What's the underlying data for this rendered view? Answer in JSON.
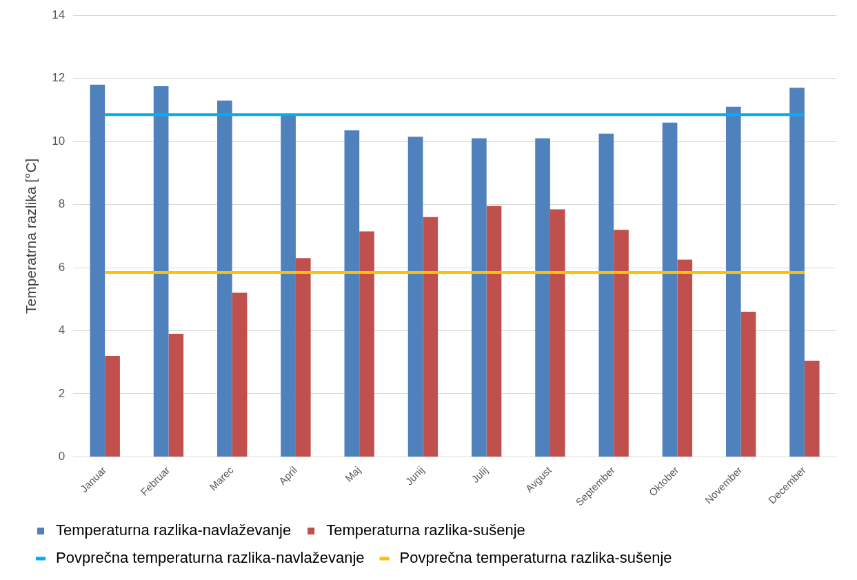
{
  "chart_data": {
    "type": "bar",
    "ylabel": "Temperatrna razlika [°C]",
    "categories": [
      "Januar",
      "Februar",
      "Marec",
      "April",
      "Maj",
      "Junij",
      "Julij",
      "Avgust",
      "September",
      "Oktober",
      "November",
      "December"
    ],
    "series": [
      {
        "name": "Temperaturna razlika-navlaževanje",
        "color": "#4f81bd",
        "values": [
          11.8,
          11.75,
          11.3,
          10.85,
          10.35,
          10.15,
          10.1,
          10.1,
          10.25,
          10.6,
          11.1,
          11.7
        ]
      },
      {
        "name": "Temperaturna razlika-sušenje",
        "color": "#c0504d",
        "values": [
          3.2,
          3.9,
          5.2,
          6.3,
          7.15,
          7.6,
          7.95,
          7.85,
          7.2,
          6.25,
          4.6,
          3.05
        ]
      },
      {
        "name": "Povprečna temperaturna razlika-navlaževanje",
        "type": "line",
        "color": "#00b0f0",
        "values": [
          10.85,
          10.85,
          10.85,
          10.85,
          10.85,
          10.85,
          10.85,
          10.85,
          10.85,
          10.85,
          10.85,
          10.85
        ]
      },
      {
        "name": "Povprečna temperaturna razlika-sušenje",
        "type": "line",
        "color": "#ffc000",
        "values": [
          5.85,
          5.85,
          5.85,
          5.85,
          5.85,
          5.85,
          5.85,
          5.85,
          5.85,
          5.85,
          5.85,
          5.85
        ]
      }
    ],
    "ylim": [
      0,
      14
    ],
    "yticks": [
      0,
      2,
      4,
      6,
      8,
      10,
      12,
      14
    ],
    "grid": "y",
    "legend": "bottom",
    "marker": "none",
    "line_style": "solid"
  }
}
